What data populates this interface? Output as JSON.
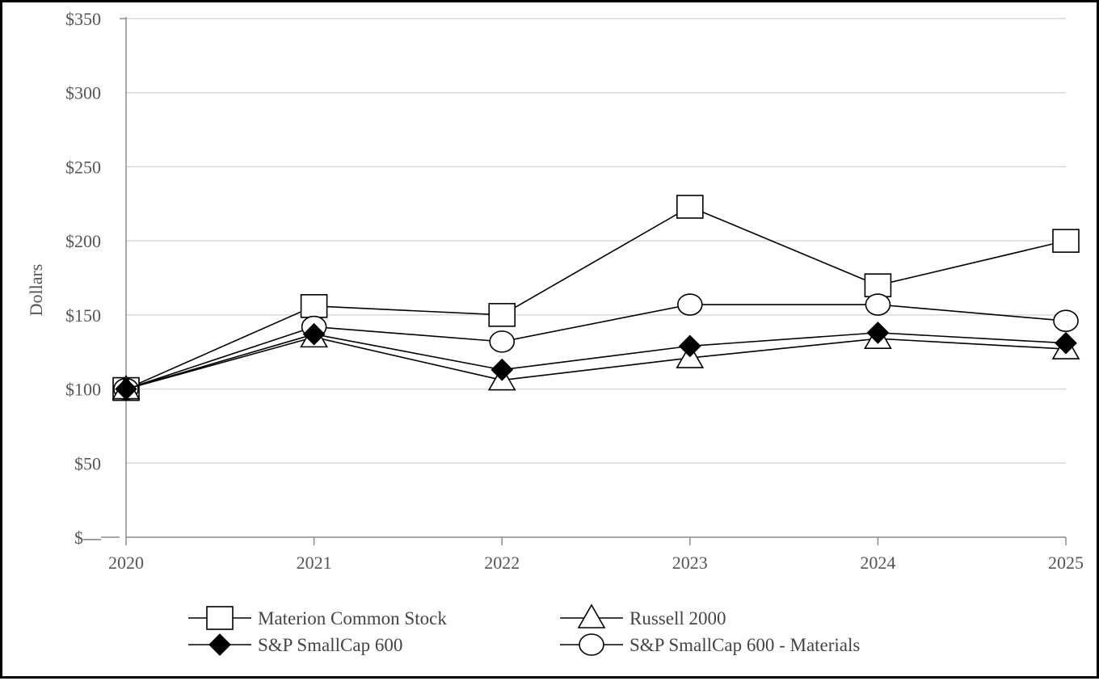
{
  "chart_data": {
    "type": "line",
    "title": "",
    "xlabel": "",
    "ylabel": "Dollars",
    "x": [
      "2020",
      "2021",
      "2022",
      "2023",
      "2024",
      "2025"
    ],
    "ylim": [
      0,
      350
    ],
    "yticks": [
      0,
      50,
      100,
      150,
      200,
      250,
      300,
      350
    ],
    "ytick_labels": [
      "$—",
      "$50",
      "$100",
      "$150",
      "$200",
      "$250",
      "$300",
      "$350"
    ],
    "grid": "horizontal",
    "legend_position": "bottom",
    "series": [
      {
        "name": "Materion Common Stock",
        "marker": "square",
        "values": [
          100,
          156,
          150,
          223,
          170,
          200
        ]
      },
      {
        "name": "Russell 2000",
        "marker": "triangle",
        "values": [
          100,
          135,
          106,
          121,
          134,
          127
        ]
      },
      {
        "name": "S&P SmallCap 600",
        "marker": "diamond",
        "values": [
          100,
          137,
          113,
          129,
          138,
          131
        ]
      },
      {
        "name": "S&P SmallCap 600 - Materials",
        "marker": "circle",
        "values": [
          100,
          142,
          132,
          157,
          157,
          146
        ]
      }
    ],
    "colors": {
      "line": "#000000",
      "grid": "#d9d9d9",
      "axis": "#8c8c8c"
    }
  }
}
